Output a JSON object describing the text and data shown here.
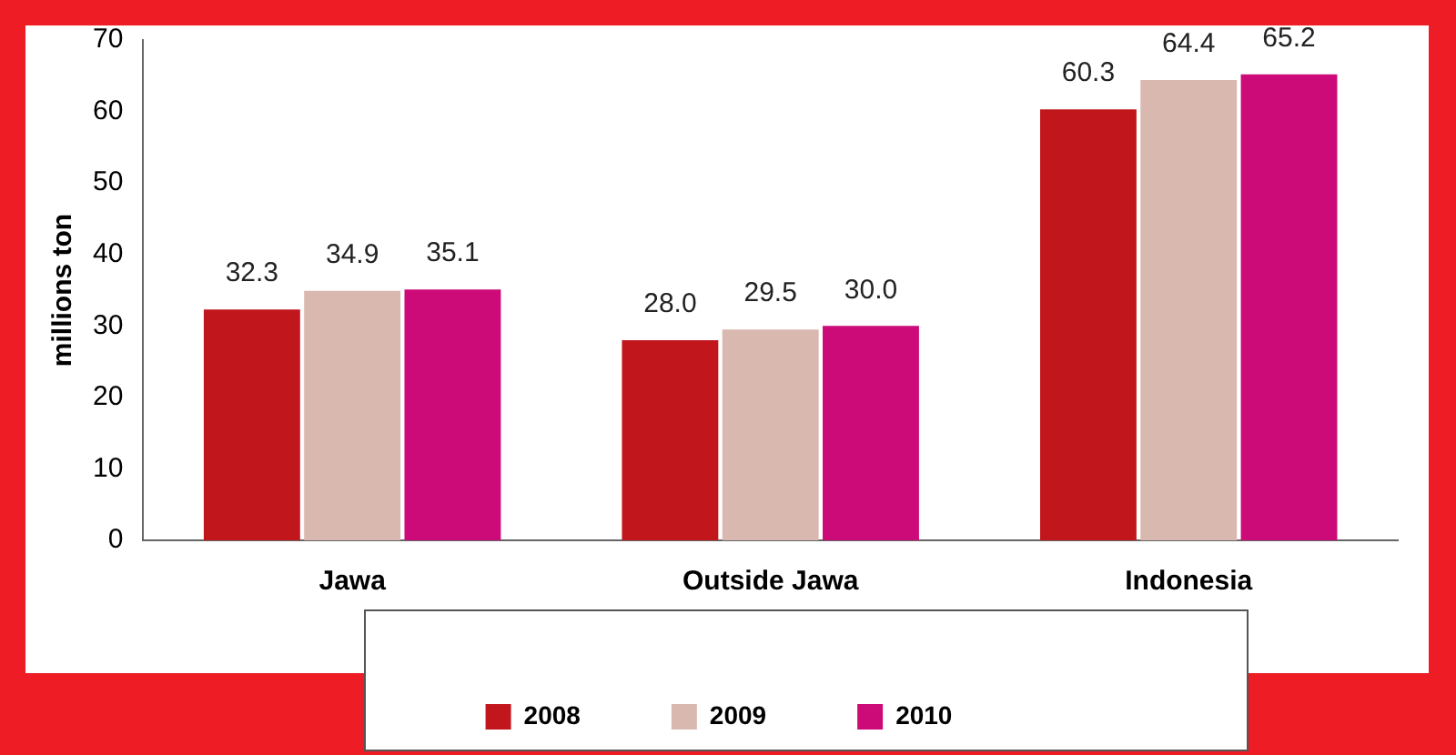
{
  "chart_data": {
    "type": "bar",
    "ylabel": "millions ton",
    "categories": [
      "Jawa",
      "Outside Jawa",
      "Indonesia"
    ],
    "series": [
      {
        "name": "2008",
        "color": "#c0161c",
        "values": [
          32.3,
          28.0,
          60.3
        ],
        "value_labels": [
          "32.3",
          "28.0",
          "60.3"
        ]
      },
      {
        "name": "2009",
        "color": "#d9b8b0",
        "values": [
          34.9,
          29.5,
          64.4
        ],
        "value_labels": [
          "34.9",
          "29.5",
          "64.4"
        ]
      },
      {
        "name": "2010",
        "color": "#cc0a78",
        "values": [
          35.1,
          30.0,
          65.2
        ],
        "value_labels": [
          "35.1",
          "30.0",
          "65.2"
        ]
      }
    ],
    "ylim": [
      0,
      70
    ],
    "yticks": [
      0,
      10,
      20,
      30,
      40,
      50,
      60,
      70
    ],
    "grid": false,
    "legend": "bottom"
  }
}
